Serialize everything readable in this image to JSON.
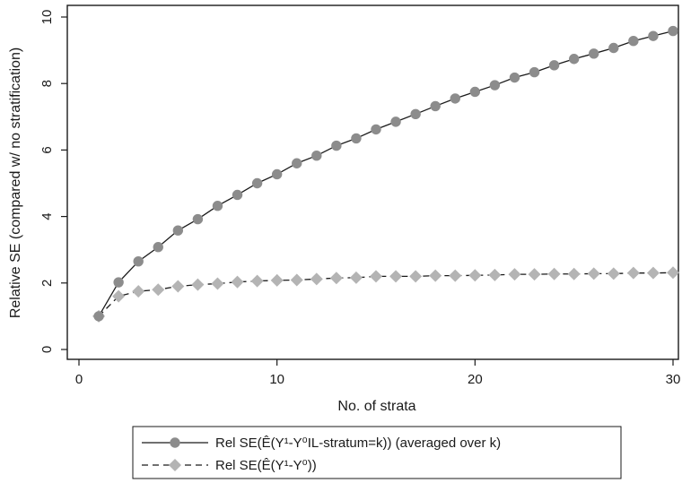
{
  "chart_data": {
    "type": "line",
    "title": "",
    "xlabel": "No. of strata",
    "ylabel": "Relative SE (compared w/ no stratification)",
    "xlim": [
      0,
      30
    ],
    "ylim": [
      0,
      10
    ],
    "x_ticks": [
      0,
      10,
      20,
      30
    ],
    "y_ticks": [
      0,
      2,
      4,
      6,
      8,
      10
    ],
    "x_tick_labels": [
      "0",
      "10",
      "20",
      "30"
    ],
    "y_tick_labels": [
      "0",
      "2",
      "4",
      "6",
      "8",
      "10"
    ],
    "grid": false,
    "legend_position": "bottom",
    "x": [
      1,
      2,
      3,
      4,
      5,
      6,
      7,
      8,
      9,
      10,
      11,
      12,
      13,
      14,
      15,
      16,
      17,
      18,
      19,
      20,
      21,
      22,
      23,
      24,
      25,
      26,
      27,
      28,
      29,
      30
    ],
    "series": [
      {
        "name": "Rel SE(Ê(Y¹-Y⁰IL-stratum=k)) (averaged over k)",
        "marker": "circle",
        "line_style": "solid",
        "marker_color": "#8c8c8c",
        "line_color": "#1a1a1a",
        "values": [
          1.0,
          2.02,
          2.65,
          3.08,
          3.58,
          3.92,
          4.32,
          4.65,
          5.0,
          5.27,
          5.6,
          5.83,
          6.13,
          6.35,
          6.62,
          6.85,
          7.08,
          7.32,
          7.55,
          7.75,
          7.95,
          8.18,
          8.34,
          8.55,
          8.74,
          8.9,
          9.07,
          9.28,
          9.43,
          9.58
        ]
      },
      {
        "name": "Rel SE(Ê(Y¹-Y⁰))",
        "marker": "diamond",
        "line_style": "dashed",
        "marker_color": "#b4b4b4",
        "line_color": "#1a1a1a",
        "values": [
          1.0,
          1.6,
          1.75,
          1.8,
          1.9,
          1.95,
          1.98,
          2.03,
          2.06,
          2.08,
          2.09,
          2.12,
          2.15,
          2.16,
          2.2,
          2.2,
          2.2,
          2.22,
          2.22,
          2.23,
          2.24,
          2.26,
          2.26,
          2.27,
          2.27,
          2.28,
          2.28,
          2.3,
          2.3,
          2.31
        ]
      }
    ]
  }
}
